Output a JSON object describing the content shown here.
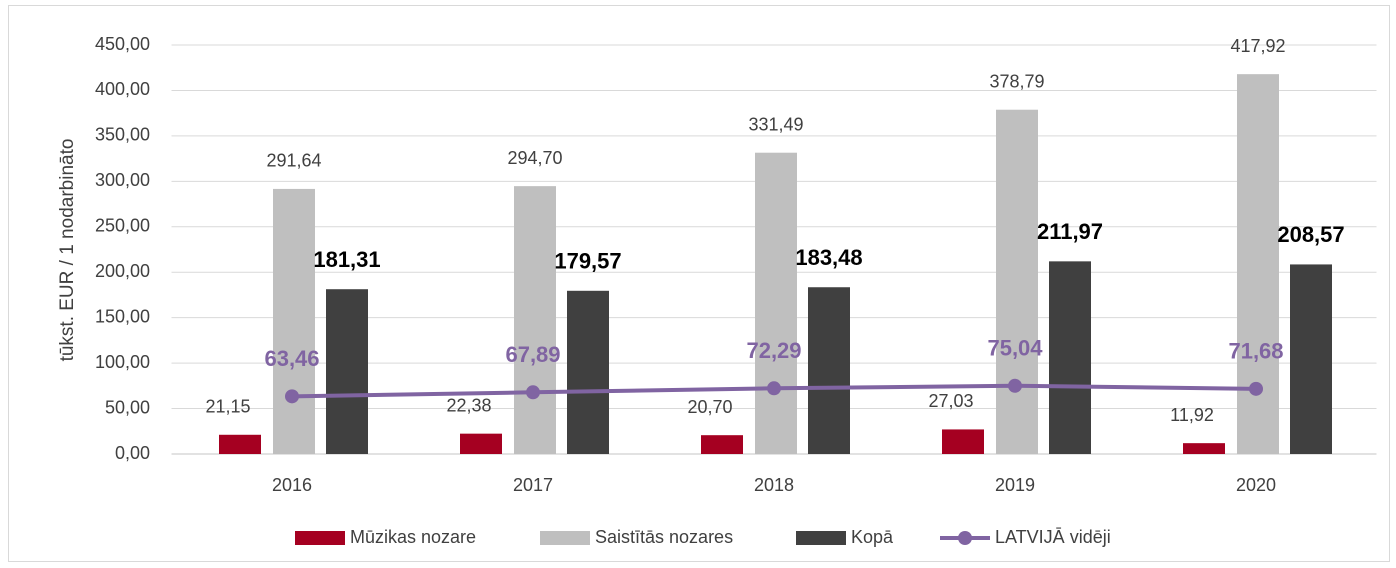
{
  "chart_data": {
    "type": "bar",
    "y_label": "tūkst. EUR / 1 nodarbināto",
    "categories": [
      "2016",
      "2017",
      "2018",
      "2019",
      "2020"
    ],
    "series": [
      {
        "name": "Mūzikas nozare",
        "color": "#a50021",
        "values": [
          21.15,
          22.38,
          20.7,
          27.03,
          11.92
        ],
        "value_labels": [
          "21,15",
          "22,38",
          "20,70",
          "27,03",
          "11,92"
        ]
      },
      {
        "name": "Saistītās nozares",
        "color": "#bfbfbf",
        "values": [
          291.64,
          294.7,
          331.49,
          378.79,
          417.92
        ],
        "value_labels": [
          "291,64",
          "294,70",
          "331,49",
          "378,79",
          "417,92"
        ]
      },
      {
        "name": "Kopā",
        "color": "#404040",
        "values": [
          181.31,
          179.57,
          183.48,
          211.97,
          208.57
        ],
        "value_labels": [
          "181,31",
          "179,57",
          "183,48",
          "211,97",
          "208,57"
        ]
      },
      {
        "name": "LATVIJĀ vidēji",
        "type": "line",
        "color": "#8064a2",
        "values": [
          63.46,
          67.89,
          72.29,
          75.04,
          71.68
        ],
        "value_labels": [
          "63,46",
          "67,89",
          "72,29",
          "75,04",
          "71,68"
        ]
      }
    ],
    "ylim": [
      0,
      450
    ],
    "yticks": [
      {
        "value": 0,
        "label": "0,00"
      },
      {
        "value": 50,
        "label": "50,00"
      },
      {
        "value": 100,
        "label": "100,00"
      },
      {
        "value": 150,
        "label": "150,00"
      },
      {
        "value": 200,
        "label": "200,00"
      },
      {
        "value": 250,
        "label": "250,00"
      },
      {
        "value": 300,
        "label": "300,00"
      },
      {
        "value": 350,
        "label": "350,00"
      },
      {
        "value": 400,
        "label": "400,00"
      },
      {
        "value": 450,
        "label": "450,00"
      }
    ],
    "grid": true,
    "legend": "bottom"
  }
}
